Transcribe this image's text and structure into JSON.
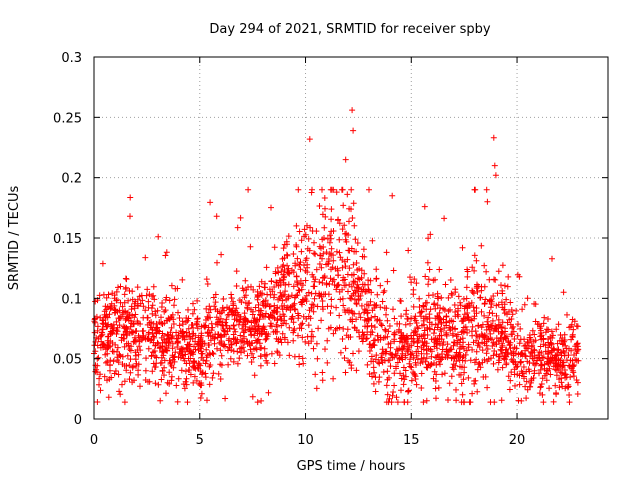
{
  "chart_data": {
    "type": "scatter",
    "title": "Day 294 of 2021, SRMTID for receiver spby",
    "xlabel": "GPS time / hours",
    "ylabel": "SRMTID / TECUs",
    "xlim": [
      0,
      24.3
    ],
    "ylim": [
      0,
      0.3
    ],
    "xticks": [
      0,
      5,
      10,
      15,
      20
    ],
    "xtick_labels": [
      "0",
      "5",
      "10",
      "15",
      "20"
    ],
    "yticks": [
      0,
      0.05,
      0.1,
      0.15,
      0.2,
      0.25,
      0.3
    ],
    "ytick_labels": [
      "0",
      "0.05",
      "0.1",
      "0.15",
      "0.2",
      "0.25",
      "0.3"
    ],
    "grid": true,
    "marker": "plus",
    "series_color": "#ff0000",
    "x_coverage": [
      0,
      22.9
    ],
    "n_points_estimate": 2500,
    "profile_hours": [
      0,
      1,
      2,
      3,
      4,
      5,
      6,
      7,
      8,
      9,
      10,
      11,
      12,
      13,
      14,
      15,
      16,
      17,
      18,
      19,
      20,
      21,
      22,
      22.9
    ],
    "profile_mean": [
      0.065,
      0.07,
      0.072,
      0.07,
      0.06,
      0.055,
      0.07,
      0.075,
      0.08,
      0.095,
      0.105,
      0.115,
      0.115,
      0.08,
      0.055,
      0.06,
      0.07,
      0.07,
      0.075,
      0.075,
      0.055,
      0.05,
      0.05,
      0.055
    ],
    "profile_spread": [
      0.025,
      0.025,
      0.028,
      0.025,
      0.022,
      0.02,
      0.025,
      0.022,
      0.025,
      0.028,
      0.035,
      0.04,
      0.04,
      0.03,
      0.025,
      0.028,
      0.03,
      0.028,
      0.035,
      0.03,
      0.02,
      0.02,
      0.02,
      0.02
    ],
    "peaks": [
      {
        "x": 1.7,
        "y": 0.168
      },
      {
        "x": 5.8,
        "y": 0.168
      },
      {
        "x": 10.2,
        "y": 0.232
      },
      {
        "x": 12.2,
        "y": 0.256
      },
      {
        "x": 12.25,
        "y": 0.239
      },
      {
        "x": 11.9,
        "y": 0.215
      },
      {
        "x": 13.0,
        "y": 0.19
      },
      {
        "x": 14.1,
        "y": 0.185
      },
      {
        "x": 15.9,
        "y": 0.153
      },
      {
        "x": 18.6,
        "y": 0.18
      },
      {
        "x": 18.9,
        "y": 0.233
      },
      {
        "x": 18.95,
        "y": 0.21
      },
      {
        "x": 19.0,
        "y": 0.202
      },
      {
        "x": 20.5,
        "y": 0.1
      },
      {
        "x": 22.2,
        "y": 0.105
      }
    ],
    "lows": [
      {
        "x": 0.7,
        "y": 0.018
      },
      {
        "x": 6.2,
        "y": 0.017
      },
      {
        "x": 7.9,
        "y": 0.015
      },
      {
        "x": 14.3,
        "y": 0.018
      },
      {
        "x": 20.2,
        "y": 0.015
      },
      {
        "x": 21.2,
        "y": 0.02
      }
    ]
  }
}
